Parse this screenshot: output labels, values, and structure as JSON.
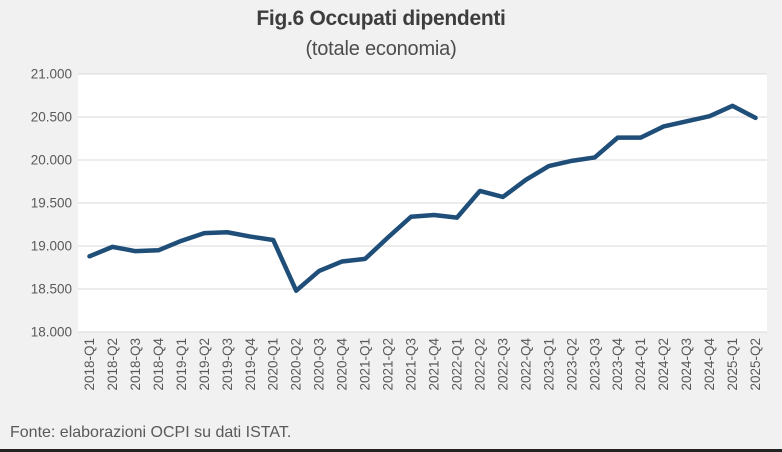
{
  "title": "Fig.6 Occupati dipendenti",
  "subtitle": "(totale economia)",
  "source_note": "Fonte: elaborazioni OCPI su dati ISTAT.",
  "colors": {
    "background": "#f1f1f1",
    "plot_background": "#ffffff",
    "gridline": "#d9d9d9",
    "line": "#1F4E79",
    "axis_text": "#595959",
    "title_text": "#3d3d3d",
    "bottom_border": "#232323"
  },
  "chart_data": {
    "type": "line",
    "title": "Fig.6 Occupati dipendenti",
    "subtitle": "(totale economia)",
    "xlabel": "",
    "ylabel": "",
    "grid": true,
    "legend": false,
    "ylim": [
      18000,
      21000
    ],
    "ytick_step": 500,
    "ytick_labels": [
      "18.000",
      "18.500",
      "19.000",
      "19.500",
      "20.000",
      "20.500",
      "21.000"
    ],
    "categories": [
      "2018-Q1",
      "2018-Q2",
      "2018-Q3",
      "2018-Q4",
      "2019-Q1",
      "2019-Q2",
      "2019-Q3",
      "2019-Q4",
      "2020-Q1",
      "2020-Q2",
      "2020-Q3",
      "2020-Q4",
      "2021-Q1",
      "2021-Q2",
      "2021-Q3",
      "2021-Q4",
      "2022-Q1",
      "2022-Q2",
      "2022-Q3",
      "2022-Q4",
      "2023-Q1",
      "2023-Q2",
      "2023-Q3",
      "2023-Q4",
      "2024-Q1",
      "2024-Q2",
      "2024-Q3",
      "2024-Q4",
      "2025-Q1",
      "2025-Q2"
    ],
    "series": [
      {
        "name": "Occupati dipendenti (totale economia)",
        "values": [
          18880,
          18990,
          18940,
          18950,
          19060,
          19150,
          19160,
          19110,
          19070,
          18480,
          18710,
          18820,
          18850,
          19100,
          19340,
          19360,
          19330,
          19640,
          19570,
          19770,
          19930,
          19990,
          20030,
          20260,
          20260,
          20390,
          20450,
          20510,
          20630,
          20490
        ]
      }
    ]
  }
}
